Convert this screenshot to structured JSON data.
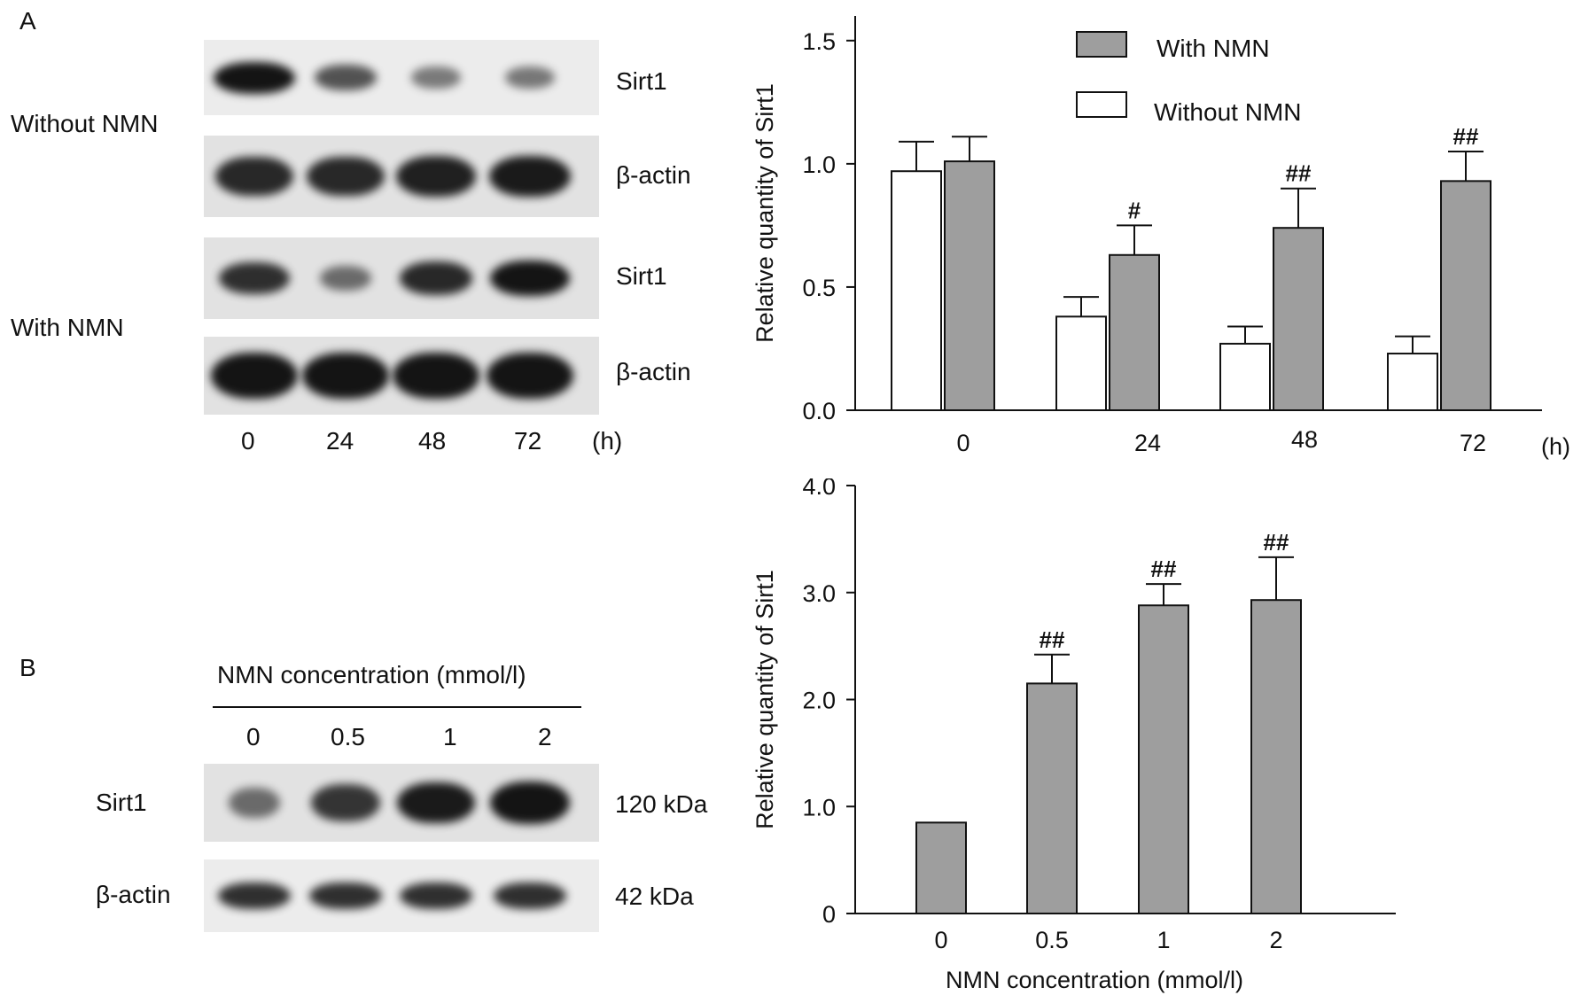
{
  "panels": {
    "A": {
      "letter": "A",
      "blot": {
        "groups": [
          {
            "label": "Without NMN",
            "rows": [
              {
                "label": "Sirt1",
                "intensity": [
                  1.0,
                  0.55,
                  0.28,
                  0.3
                ]
              },
              {
                "label": "β-actin",
                "intensity": [
                  0.85,
                  0.85,
                  0.9,
                  0.95
                ]
              }
            ]
          },
          {
            "label": "With NMN",
            "rows": [
              {
                "label": "Sirt1",
                "intensity": [
                  0.8,
                  0.35,
                  0.85,
                  1.0
                ]
              },
              {
                "label": "β-actin",
                "intensity": [
                  1.0,
                  1.0,
                  1.0,
                  1.0
                ]
              }
            ]
          }
        ],
        "lanes": [
          "0",
          "24",
          "48",
          "72"
        ],
        "lane_unit": "(h)"
      }
    },
    "B": {
      "letter": "B",
      "blot": {
        "header": "NMN concentration (mmol/l)",
        "lanes": [
          "0",
          "0.5",
          "1",
          "2"
        ],
        "rows": [
          {
            "label": "Sirt1",
            "size": "120 kDa",
            "intensity": [
              0.35,
              0.75,
              0.95,
              1.0
            ]
          },
          {
            "label": "β-actin",
            "size": "42 kDa",
            "intensity": [
              0.8,
              0.8,
              0.8,
              0.8
            ]
          }
        ]
      }
    }
  },
  "chart_data": [
    {
      "type": "bar",
      "categories": [
        "0",
        "24",
        "48",
        "72"
      ],
      "x_unit": "(h)",
      "xlabel": "",
      "ylabel": "Relative quantity of Sirt1",
      "ylim": [
        0,
        1.6
      ],
      "yticks": [
        "0.0",
        "0.5",
        "1.0",
        "1.5"
      ],
      "legend_position": "top-right",
      "grid": false,
      "series": [
        {
          "name": "Without NMN",
          "color": "#ffffff",
          "values": [
            0.97,
            0.38,
            0.27,
            0.23
          ],
          "errors": [
            0.12,
            0.08,
            0.07,
            0.07
          ],
          "annotations": [
            "",
            "",
            "",
            ""
          ]
        },
        {
          "name": "With NMN",
          "color": "#9e9e9e",
          "values": [
            1.01,
            0.63,
            0.74,
            0.93
          ],
          "errors": [
            0.1,
            0.12,
            0.16,
            0.12
          ],
          "annotations": [
            "",
            "#",
            "##",
            "##"
          ]
        }
      ]
    },
    {
      "type": "bar",
      "categories": [
        "0",
        "0.5",
        "1",
        "2"
      ],
      "xlabel": "NMN concentration (mmol/l)",
      "ylabel": "Relative quantity of Sirt1",
      "ylim": [
        0,
        4.0
      ],
      "yticks": [
        "0",
        "1.0",
        "2.0",
        "3.0",
        "4.0"
      ],
      "grid": false,
      "series": [
        {
          "name": "",
          "color": "#9e9e9e",
          "values": [
            0.85,
            2.15,
            2.88,
            2.93
          ],
          "errors": [
            0,
            0.27,
            0.2,
            0.4
          ],
          "annotations": [
            "",
            "##",
            "##",
            "##"
          ]
        }
      ]
    }
  ]
}
